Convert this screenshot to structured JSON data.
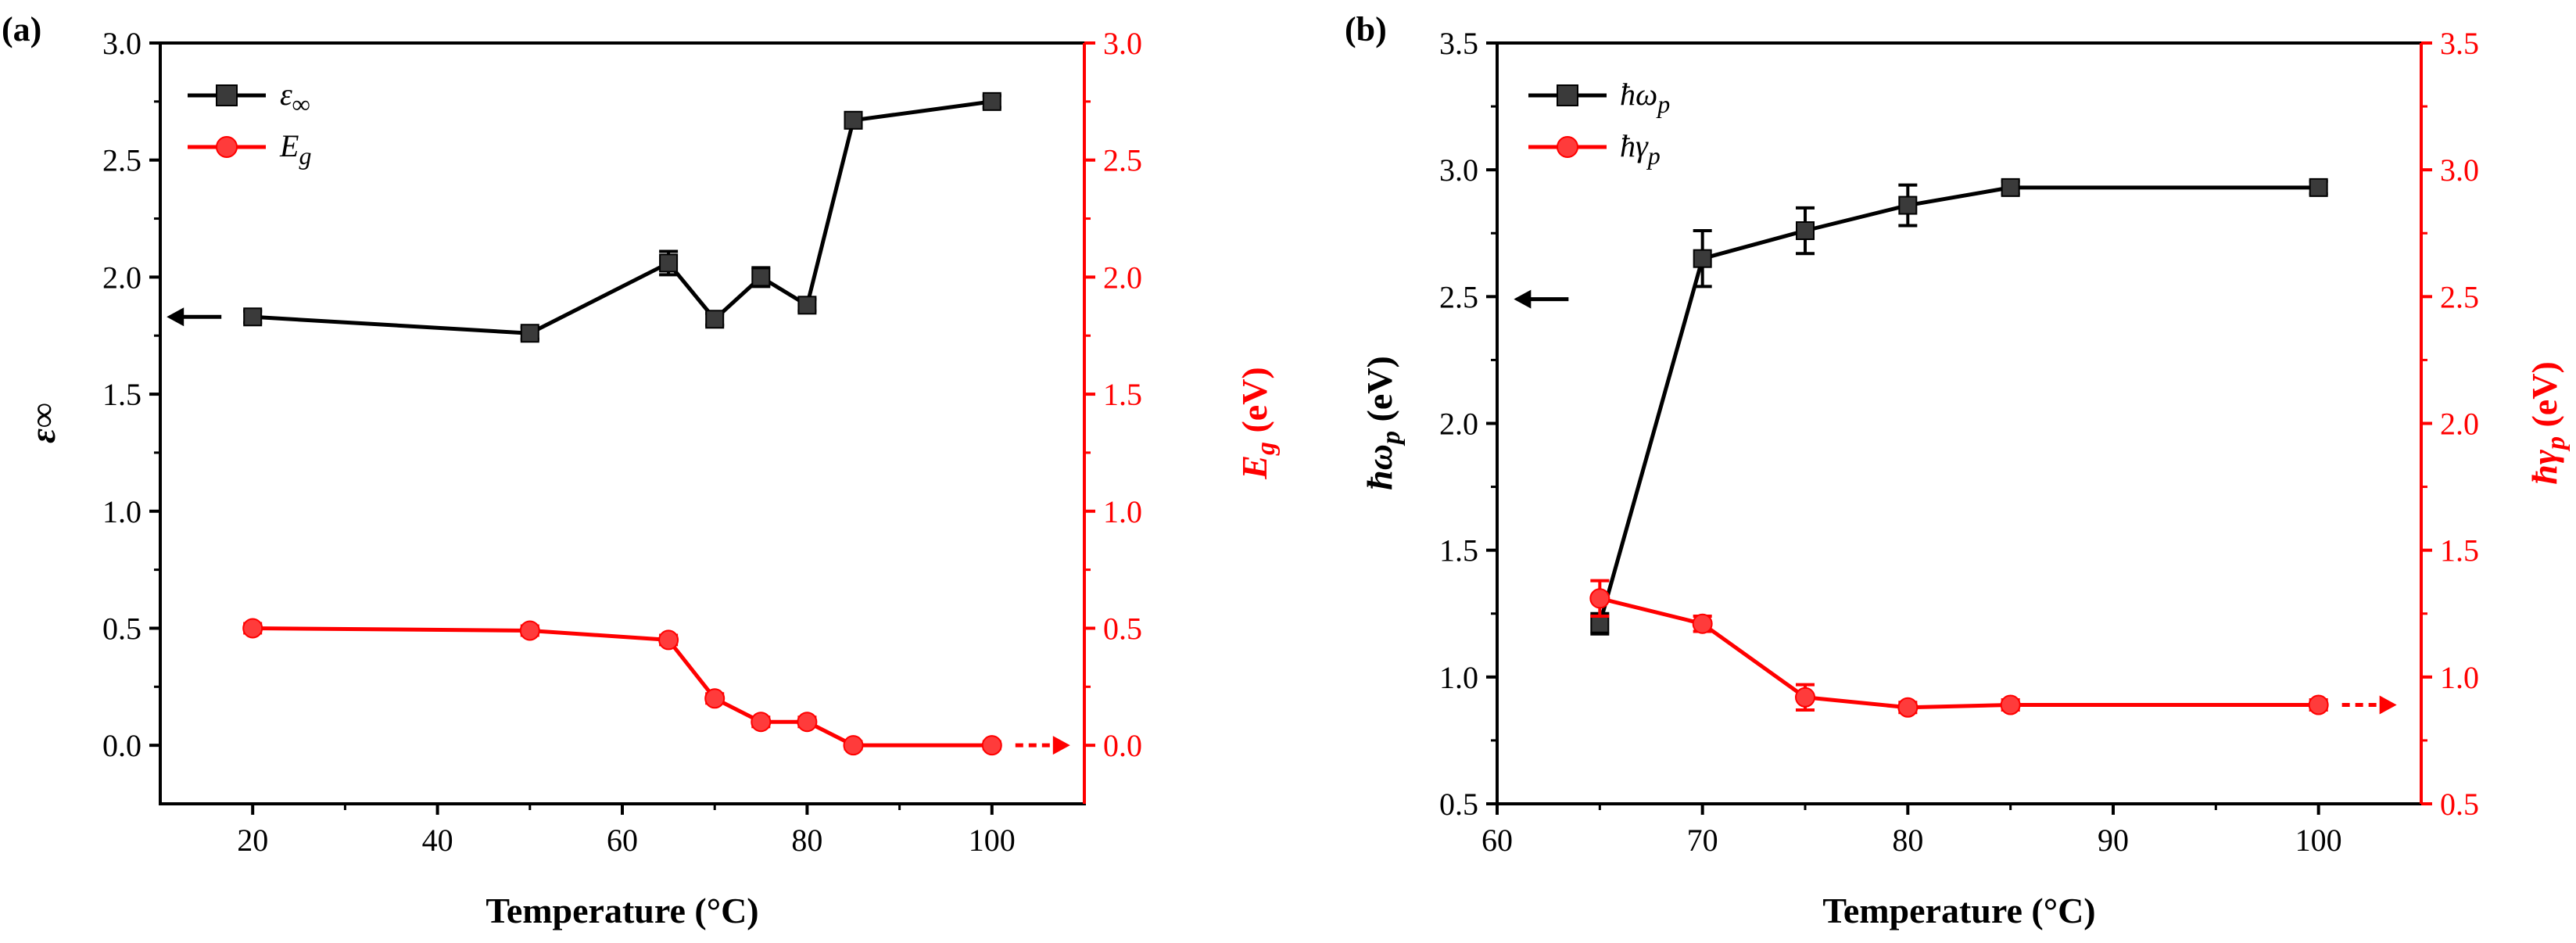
{
  "colors": {
    "left_series": "#000000",
    "right_series": "#ff0000",
    "marker_dark": "#3a3a3a",
    "marker_red": "#ff3b3b"
  },
  "chart_data": [
    {
      "panel_label": "(a)",
      "type": "line",
      "xlabel": "Temperature (°C)",
      "xlim": [
        10,
        110
      ],
      "xticks": [
        20,
        40,
        60,
        80,
        100
      ],
      "xtick_labels": [
        "20",
        "40",
        "60",
        "80",
        "100"
      ],
      "y_left": {
        "label": "ε∞",
        "lim": [
          -0.25,
          3.0
        ],
        "ticks": [
          0.0,
          0.5,
          1.0,
          1.5,
          2.0,
          2.5,
          3.0
        ],
        "tick_labels": [
          "0.0",
          "0.5",
          "1.0",
          "1.5",
          "2.0",
          "2.5",
          "3.0"
        ]
      },
      "y_right": {
        "label_main": "E",
        "label_sub": "g",
        "label_unit": " (eV)",
        "lim": [
          -0.25,
          3.0
        ],
        "ticks": [
          0.0,
          0.5,
          1.0,
          1.5,
          2.0,
          2.5,
          3.0
        ],
        "tick_labels": [
          "0.0",
          "0.5",
          "1.0",
          "1.5",
          "2.0",
          "2.5",
          "3.0"
        ]
      },
      "series": [
        {
          "name": "ε∞",
          "name_main": "ε",
          "name_sub": "∞",
          "axis": "left",
          "marker": "square",
          "x": [
            20,
            50,
            65,
            70,
            75,
            80,
            85,
            100
          ],
          "y": [
            1.83,
            1.76,
            2.06,
            1.82,
            2.0,
            1.88,
            2.67,
            2.75
          ],
          "err": [
            0.025,
            0.025,
            0.05,
            0.025,
            0.04,
            0.025,
            0.025,
            0.025
          ]
        },
        {
          "name": "Eg",
          "name_main": "E",
          "name_sub": "g",
          "axis": "right",
          "marker": "circle",
          "x": [
            20,
            50,
            65,
            70,
            75,
            80,
            85,
            100
          ],
          "y": [
            0.5,
            0.49,
            0.45,
            0.2,
            0.1,
            0.1,
            0.0,
            0.0
          ],
          "err": [
            0.02,
            0.02,
            0.02,
            0.02,
            0.02,
            0.02,
            0.015,
            0.015
          ]
        }
      ],
      "arrows": [
        {
          "series": "ε∞",
          "direction": "left",
          "at_x": 20,
          "at_y": 1.83
        },
        {
          "series": "Eg",
          "direction": "right",
          "at_x": 100,
          "at_y": 0.0
        }
      ],
      "legend_position": "top-left"
    },
    {
      "panel_label": "(b)",
      "type": "line",
      "xlabel": "Temperature (°C)",
      "xlim": [
        60,
        105
      ],
      "xticks": [
        60,
        70,
        80,
        90,
        100
      ],
      "xtick_labels": [
        "60",
        "70",
        "80",
        "90",
        "100"
      ],
      "y_left": {
        "label_main": "ħω",
        "label_sub": "p",
        "label_unit": " (eV)",
        "lim": [
          0.5,
          3.5
        ],
        "ticks": [
          0.5,
          1.0,
          1.5,
          2.0,
          2.5,
          3.0,
          3.5
        ],
        "tick_labels": [
          "0.5",
          "1.0",
          "1.5",
          "2.0",
          "2.5",
          "3.0",
          "3.5"
        ]
      },
      "y_right": {
        "label_main": "ħγ",
        "label_sub": "p",
        "label_unit": " (eV)",
        "lim": [
          0.5,
          3.5
        ],
        "ticks": [
          0.5,
          1.0,
          1.5,
          2.0,
          2.5,
          3.0,
          3.5
        ],
        "tick_labels": [
          "0.5",
          "1.0",
          "1.5",
          "2.0",
          "2.5",
          "3.0",
          "3.5"
        ]
      },
      "series": [
        {
          "name": "ħωp",
          "name_main": "ħω",
          "name_sub": "p",
          "axis": "left",
          "marker": "square",
          "x": [
            65,
            70,
            75,
            80,
            85,
            100
          ],
          "y": [
            1.21,
            2.65,
            2.76,
            2.86,
            2.93,
            2.93
          ],
          "err": [
            0.04,
            0.11,
            0.09,
            0.08,
            0.025,
            0.025
          ]
        },
        {
          "name": "ħγp",
          "name_main": "ħγ",
          "name_sub": "p",
          "axis": "right",
          "marker": "circle",
          "x": [
            65,
            70,
            75,
            80,
            85,
            100
          ],
          "y": [
            1.31,
            1.21,
            0.92,
            0.88,
            0.89,
            0.89
          ],
          "err": [
            0.07,
            0.03,
            0.05,
            0.02,
            0.02,
            0.02
          ]
        }
      ],
      "arrows": [
        {
          "series": "ħωp",
          "direction": "left",
          "at_x": 65,
          "at_y": 2.49
        },
        {
          "series": "ħγp",
          "direction": "right",
          "at_x": 100,
          "at_y": 0.89
        }
      ],
      "legend_position": "top-left"
    }
  ]
}
